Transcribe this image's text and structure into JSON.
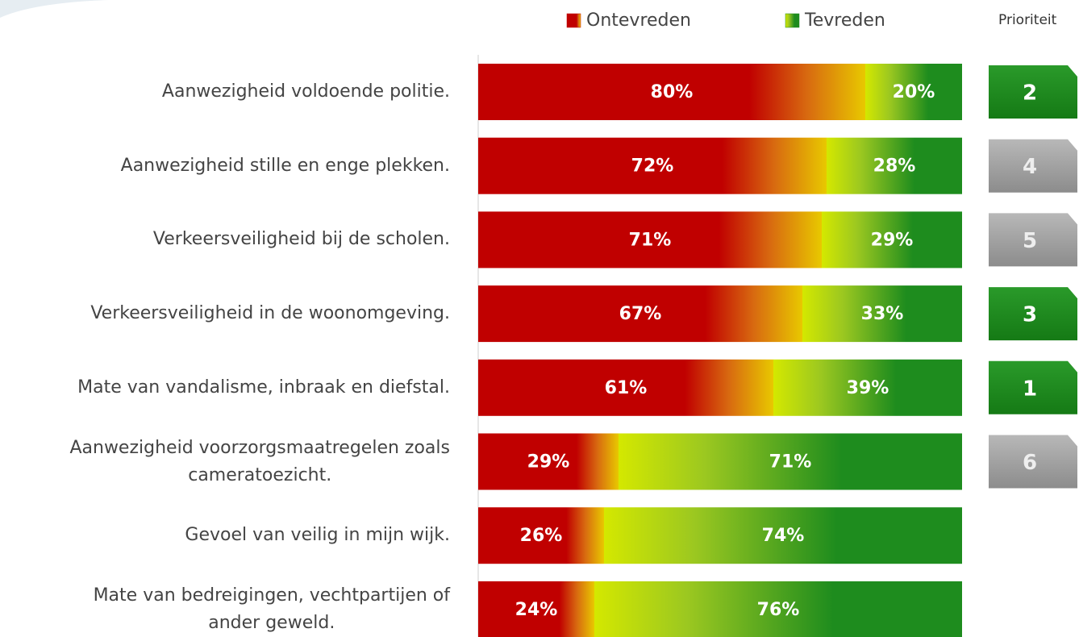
{
  "chart_data": {
    "type": "bar",
    "orientation": "horizontal",
    "stacked": true,
    "categories": [
      "Aanwezigheid voldoende politie.",
      "Aanwezigheid stille en enge plekken.",
      "Verkeersveiligheid bij de scholen.",
      "Verkeersveiligheid in de woonomgeving.",
      "Mate van vandalisme, inbraak en diefstal.",
      "Aanwezigheid voorzorgsmaatregelen zoals\ncameratoezicht.",
      "Gevoel van veilig in mijn wijk.",
      "Mate van bedreigingen, vechtpartijen of\nander geweld."
    ],
    "series": [
      {
        "name": "Ontevreden",
        "color": "#c00000",
        "values": [
          80,
          72,
          71,
          67,
          61,
          29,
          26,
          24
        ],
        "value_labels": [
          "80%",
          "72%",
          "71%",
          "67%",
          "61%",
          "29%",
          "26%",
          "24%"
        ]
      },
      {
        "name": "Tevreden",
        "color": "#1e8c1e",
        "values": [
          20,
          28,
          29,
          33,
          39,
          71,
          74,
          76
        ],
        "value_labels": [
          "20%",
          "28%",
          "29%",
          "33%",
          "39%",
          "71%",
          "74%",
          "76%"
        ]
      }
    ],
    "xlim": [
      0,
      100
    ],
    "priority": {
      "title": "Prioriteit",
      "values": [
        2,
        4,
        5,
        3,
        1,
        6,
        null,
        null
      ],
      "colors": [
        "green",
        "gray",
        "gray",
        "green",
        "green",
        "gray",
        null,
        null
      ]
    }
  }
}
